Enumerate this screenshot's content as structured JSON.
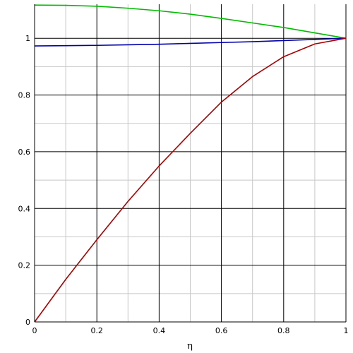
{
  "chart_data": {
    "type": "line",
    "title": "",
    "xlabel": "η",
    "ylabel": "",
    "xlim": [
      0,
      1
    ],
    "ylim": [
      0,
      1.12
    ],
    "grid": true,
    "legend": "none",
    "x_ticks": [
      0,
      0.2,
      0.4,
      0.6,
      0.8,
      1
    ],
    "x_tick_labels": [
      "0",
      "0.2",
      "0.4",
      "0.6",
      "0.8",
      "1"
    ],
    "y_ticks": [
      0,
      0.2,
      0.4,
      0.6,
      0.8,
      1
    ],
    "y_tick_labels": [
      "0",
      "0.2",
      "0.4",
      "0.6",
      "0.8",
      "1"
    ],
    "series": [
      {
        "color": "#00bb00",
        "x": [
          0,
          0.1,
          0.2,
          0.3,
          0.4,
          0.5,
          0.6,
          0.7,
          0.8,
          0.9,
          1.0
        ],
        "y": [
          1.117,
          1.116,
          1.113,
          1.106,
          1.097,
          1.085,
          1.07,
          1.054,
          1.038,
          1.019,
          1.0
        ]
      },
      {
        "color": "#0000aa",
        "x": [
          0,
          0.1,
          0.2,
          0.3,
          0.4,
          0.5,
          0.6,
          0.7,
          0.8,
          0.9,
          1.0
        ],
        "y": [
          0.973,
          0.974,
          0.975,
          0.977,
          0.979,
          0.982,
          0.985,
          0.988,
          0.992,
          0.996,
          1.0
        ]
      },
      {
        "color": "#aa0000",
        "x": [
          0,
          0.1,
          0.2,
          0.3,
          0.4,
          0.5,
          0.6,
          0.7,
          0.8,
          0.9,
          1.0
        ],
        "y": [
          0.0,
          0.15,
          0.29,
          0.425,
          0.55,
          0.665,
          0.775,
          0.865,
          0.935,
          0.98,
          1.0
        ]
      }
    ]
  }
}
